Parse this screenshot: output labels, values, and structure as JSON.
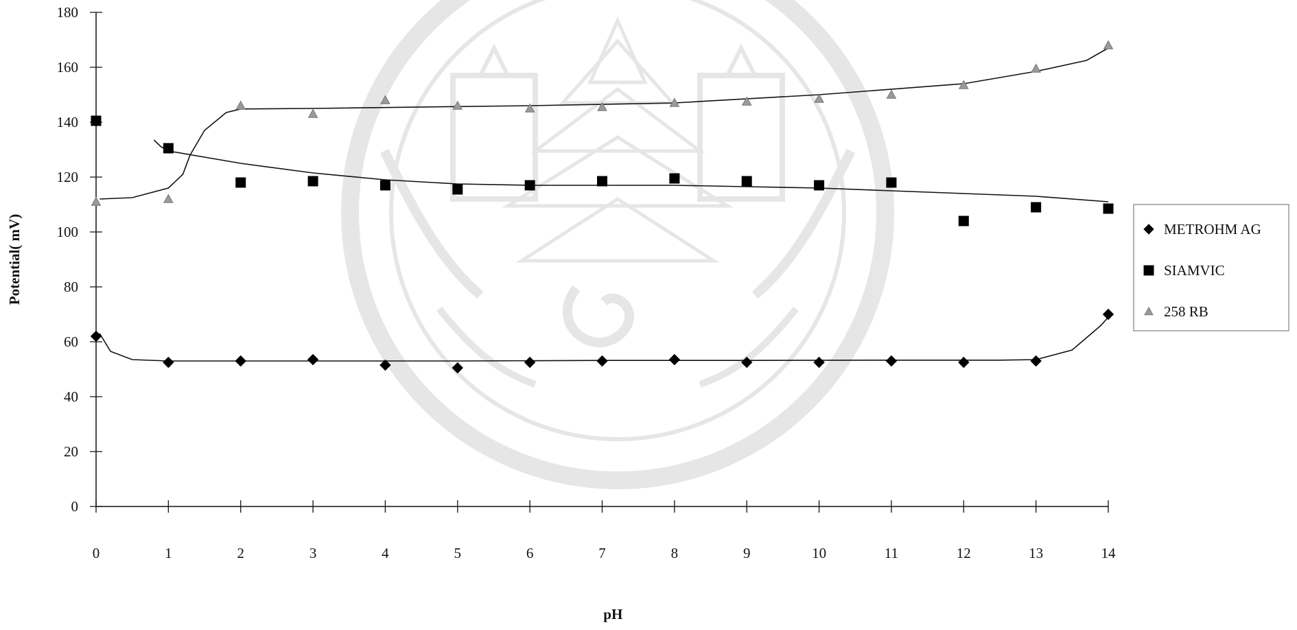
{
  "chart_data": {
    "type": "scatter",
    "xlabel": "pH",
    "ylabel": "Potential( mV)",
    "xlim": [
      0,
      14
    ],
    "ylim": [
      0,
      180
    ],
    "x_ticks": [
      "0",
      "1",
      "2",
      "3",
      "4",
      "5",
      "6",
      "7",
      "8",
      "9",
      "10",
      "11",
      "12",
      "13",
      "14"
    ],
    "y_ticks": [
      "0",
      "20",
      "40",
      "60",
      "80",
      "100",
      "120",
      "140",
      "160",
      "180"
    ],
    "grid": false,
    "legend_position": "right",
    "watermark": "seal emblem (faint, gray) in the background",
    "x": [
      0,
      1,
      2,
      3,
      4,
      5,
      6,
      7,
      8,
      9,
      10,
      11,
      12,
      13,
      14
    ],
    "series": [
      {
        "name": "METROHM AG",
        "marker": "diamond",
        "color": "#000000",
        "values": [
          62,
          52.5,
          53,
          53.5,
          51.5,
          50.5,
          52.5,
          53,
          53.5,
          52.5,
          52.5,
          53,
          52.5,
          53,
          70
        ],
        "trend": [
          [
            0.05,
            63
          ],
          [
            0.2,
            56.5
          ],
          [
            0.5,
            53.5
          ],
          [
            1,
            53
          ],
          [
            3,
            53
          ],
          [
            5,
            53
          ],
          [
            7,
            53.2
          ],
          [
            9,
            53.2
          ],
          [
            11,
            53.3
          ],
          [
            12.5,
            53.3
          ],
          [
            13,
            53.5
          ],
          [
            13.5,
            57
          ],
          [
            13.9,
            66
          ],
          [
            14,
            69
          ]
        ]
      },
      {
        "name": "SIAMVIC",
        "marker": "square",
        "color": "#000000",
        "values": [
          140.5,
          130.5,
          118,
          118.5,
          117,
          115.5,
          117,
          118.5,
          119.5,
          118.5,
          117,
          118,
          104,
          109,
          108.5
        ],
        "trend": [
          [
            0.8,
            133.5
          ],
          [
            0.9,
            131
          ],
          [
            1,
            129.5
          ],
          [
            2,
            125
          ],
          [
            3,
            121.5
          ],
          [
            4,
            119
          ],
          [
            5,
            117.5
          ],
          [
            6,
            117
          ],
          [
            7,
            117
          ],
          [
            8,
            117
          ],
          [
            9,
            116.5
          ],
          [
            10,
            116
          ],
          [
            11,
            115
          ],
          [
            12,
            114
          ],
          [
            13,
            113
          ],
          [
            14,
            111
          ]
        ]
      },
      {
        "name": "258 RB",
        "marker": "triangle",
        "color": "#9a9a9a",
        "values": [
          111,
          112,
          146,
          143,
          148,
          146,
          145,
          145.5,
          147,
          147.5,
          148.5,
          150,
          153.5,
          159.5,
          168
        ],
        "trend": [
          [
            0.05,
            112
          ],
          [
            0.5,
            112.5
          ],
          [
            1,
            116
          ],
          [
            1.2,
            121
          ],
          [
            1.3,
            128
          ],
          [
            1.5,
            137
          ],
          [
            1.8,
            143.5
          ],
          [
            2,
            144.8
          ],
          [
            3,
            145
          ],
          [
            6,
            146
          ],
          [
            8,
            147
          ],
          [
            10,
            150
          ],
          [
            12,
            154
          ],
          [
            13,
            158.5
          ],
          [
            13.7,
            162.5
          ],
          [
            14,
            167
          ]
        ]
      }
    ]
  }
}
